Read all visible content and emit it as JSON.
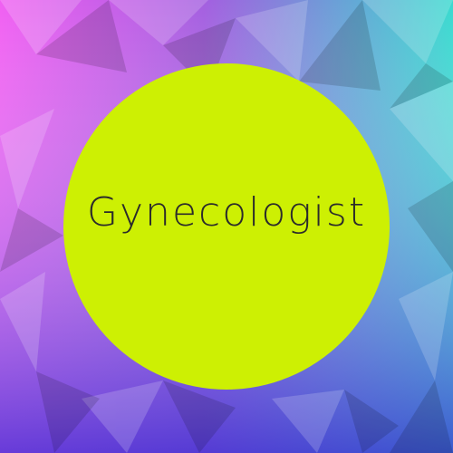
{
  "badge": {
    "title": "Gynecologist"
  },
  "colors": {
    "circle_fill": "#cdf003",
    "text": "#2b2b2b",
    "bg_top_left": "#f45cf0",
    "bg_top_right": "#3fe0d0",
    "bg_bottom_left": "#8e2fd0",
    "bg_bottom_right": "#3a3fd6"
  }
}
